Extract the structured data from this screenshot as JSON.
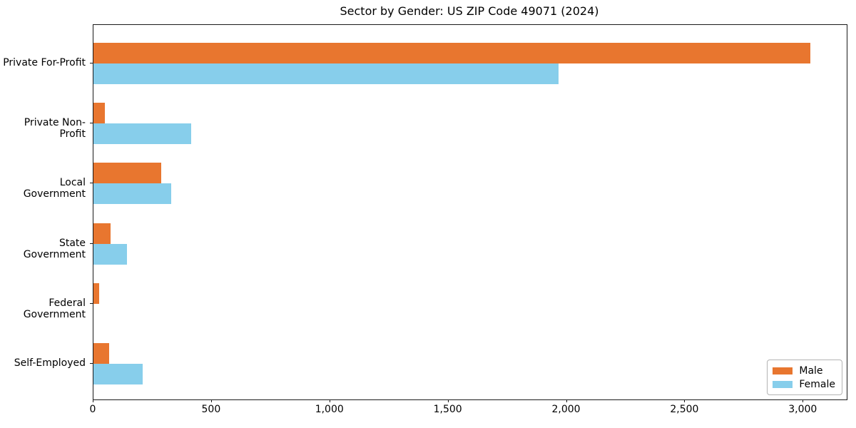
{
  "title": "Sector by Gender: US ZIP Code 49071 (2024)",
  "chart_data": {
    "type": "bar",
    "orientation": "horizontal",
    "title": "Sector by Gender: US ZIP Code 49071 (2024)",
    "categories": [
      "Private For-Profit",
      "Private Non-Profit",
      "Local Government",
      "State Government",
      "Federal Government",
      "Self-Employed"
    ],
    "series": [
      {
        "name": "Male",
        "color": "#e8762f",
        "values": [
          3030,
          47,
          285,
          71,
          24,
          65
        ]
      },
      {
        "name": "Female",
        "color": "#87ceeb",
        "values": [
          1965,
          414,
          330,
          141,
          0,
          209
        ]
      }
    ],
    "xlabel": "",
    "ylabel": "",
    "x_tick_labels": [
      "0",
      "500",
      "1,000",
      "1,500",
      "2,000",
      "2,500",
      "3,000"
    ],
    "x_tick_values": [
      0,
      500,
      1000,
      1500,
      2000,
      2500,
      3000
    ],
    "xlim": [
      0,
      3183
    ],
    "grid": false,
    "legend_position": "lower right",
    "legend_labels": [
      "Male",
      "Female"
    ]
  },
  "colors": {
    "male": "#e8762f",
    "female": "#87ceeb",
    "spine": "#1a1a1a",
    "background": "#ffffff",
    "legend_border": "#b3b3b3"
  }
}
